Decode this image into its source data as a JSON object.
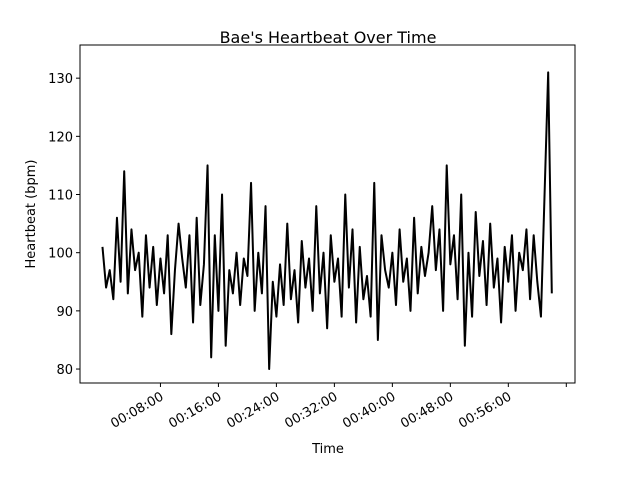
{
  "chart_data": {
    "type": "line",
    "title": "Bae's Heartbeat Over Time",
    "xlabel": "Time",
    "ylabel": "Heartbeat (bpm)",
    "x": [
      0,
      0.5,
      1,
      1.5,
      2,
      2.5,
      3,
      3.5,
      4,
      4.5,
      5,
      5.5,
      6,
      6.5,
      7,
      7.5,
      8,
      8.5,
      9,
      9.5,
      10,
      10.5,
      11,
      11.5,
      12,
      12.5,
      13,
      13.5,
      14,
      14.5,
      15,
      15.5,
      16,
      16.5,
      17,
      17.5,
      18,
      18.5,
      19,
      19.5,
      20,
      20.5,
      21,
      21.5,
      22,
      22.5,
      23,
      23.5,
      24,
      24.5,
      25,
      25.5,
      26,
      26.5,
      27,
      27.5,
      28,
      28.5,
      29,
      29.5,
      30,
      30.5,
      31,
      31.5,
      32,
      32.5,
      33,
      33.5,
      34,
      34.5,
      35,
      35.5,
      36,
      36.5,
      37,
      37.5,
      38,
      38.5,
      39,
      39.5,
      40,
      40.5,
      41,
      41.5,
      42,
      42.5,
      43,
      43.5,
      44,
      44.5,
      45,
      45.5,
      46,
      46.5,
      47,
      47.5,
      48,
      48.5,
      49,
      49.5,
      50,
      50.5,
      51,
      51.5,
      52,
      52.5,
      53,
      53.5,
      54,
      54.5,
      55,
      55.5,
      56,
      56.5,
      57,
      57.5,
      58,
      58.5,
      59,
      59.5,
      60,
      60.5,
      61,
      61.5,
      62
    ],
    "series": [
      {
        "name": "Heartbeat",
        "color": "#000000",
        "values": [
          101,
          94,
          97,
          92,
          106,
          95,
          114,
          93,
          104,
          97,
          100,
          89,
          103,
          94,
          101,
          91,
          99,
          93,
          103,
          86,
          97,
          105,
          99,
          94,
          103,
          88,
          106,
          91,
          98,
          115,
          82,
          103,
          90,
          110,
          84,
          97,
          93,
          100,
          91,
          99,
          96,
          112,
          90,
          100,
          93,
          108,
          80,
          95,
          89,
          98,
          91,
          105,
          92,
          97,
          88,
          102,
          94,
          99,
          90,
          108,
          93,
          100,
          87,
          103,
          95,
          99,
          89,
          110,
          94,
          104,
          88,
          101,
          92,
          96,
          89,
          112,
          85,
          103,
          97,
          94,
          100,
          91,
          104,
          95,
          99,
          90,
          106,
          93,
          101,
          96,
          100,
          108,
          97,
          104,
          90,
          115,
          98,
          103,
          92,
          110,
          84,
          100,
          89,
          107,
          96,
          102,
          91,
          105,
          94,
          99,
          88,
          101,
          95,
          103,
          90,
          100,
          97,
          104,
          92,
          103,
          95,
          89,
          110,
          131,
          93
        ]
      }
    ],
    "xlim": [
      -3.1,
      65.2
    ],
    "ylim": [
      77.6,
      135.7
    ],
    "xticks": [
      {
        "value": 8,
        "label": "00:08:00"
      },
      {
        "value": 16,
        "label": "00:16:00"
      },
      {
        "value": 24,
        "label": "00:24:00"
      },
      {
        "value": 32,
        "label": "00:32:00"
      },
      {
        "value": 40,
        "label": "00:40:00"
      },
      {
        "value": 48,
        "label": "00:48:00"
      },
      {
        "value": 56,
        "label": "00:56:00"
      },
      {
        "value": 64,
        "label": null
      }
    ],
    "yticks": [
      80,
      90,
      100,
      110,
      120,
      130
    ],
    "grid": false
  }
}
